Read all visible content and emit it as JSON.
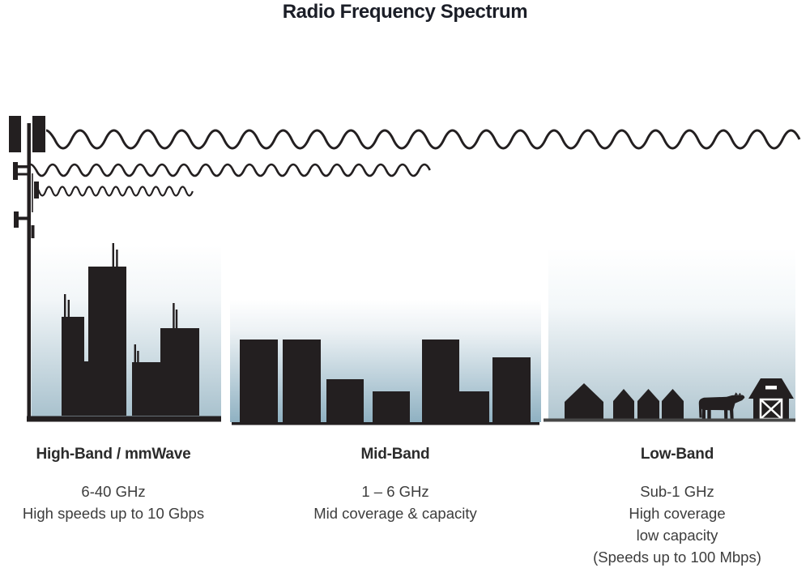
{
  "title": "Radio Frequency Spectrum",
  "bands": [
    {
      "name": "High-Band / mmWave",
      "lines": [
        "6-40 GHz",
        "High speeds up to 10 Gbps"
      ]
    },
    {
      "name": "Mid-Band",
      "lines": [
        "1 – 6 GHz",
        "Mid coverage & capacity"
      ]
    },
    {
      "name": "Low-Band",
      "lines": [
        "Sub-1 GHz",
        "High coverage",
        "low capacity",
        "(Speeds up to 100 Mbps)"
      ]
    }
  ],
  "icons": {
    "tower": "cell-tower-icon",
    "wave_top": "low-frequency-long-wave-icon",
    "wave_middle": "mid-frequency-wave-icon",
    "wave_bottom": "high-frequency-short-wave-icon",
    "high_band_scene": "city-skyscrapers-icon",
    "mid_band_scene": "mid-rise-buildings-icon",
    "low_band_scene": "rural-houses-cow-barn-icon"
  },
  "colors": {
    "ink": "#231f20",
    "title": "#1b1e27",
    "heading": "#2b2b2b",
    "body_text": "#3d3d3d",
    "sky_high": "#a9c2ce",
    "sky_mid": "#8fb1c2",
    "sky_low": "#b2c7d1",
    "ground_gray": "#474747"
  }
}
